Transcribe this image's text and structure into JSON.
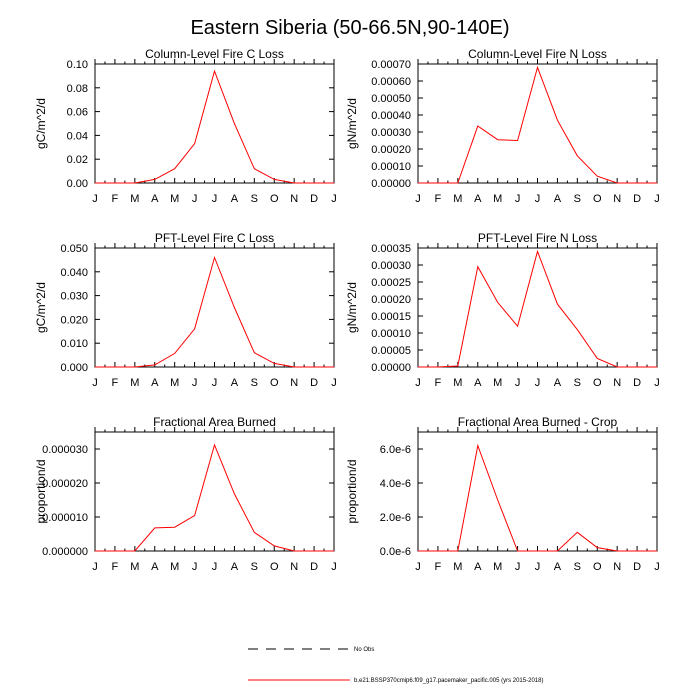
{
  "title": "Eastern Siberia (50-66.5N,90-140E)",
  "month_labels": [
    "J",
    "F",
    "M",
    "A",
    "M",
    "J",
    "J",
    "A",
    "S",
    "O",
    "N",
    "D",
    "J"
  ],
  "legend": [
    {
      "label": "No Obs",
      "color": "#000000",
      "style": "dashed"
    },
    {
      "label": "b.e21.BSSP370cmip6.f09_g17.pacemaker_pacific.005 (yrs 2015-2018)",
      "color": "#ff0000",
      "style": "solid"
    }
  ],
  "chart_data": [
    {
      "type": "line",
      "title": "Column-Level Fire C Loss",
      "ylabel": "gC/m^2/d",
      "ylim": [
        0,
        0.1
      ],
      "yticks": [
        0,
        0.02,
        0.04,
        0.06,
        0.08,
        0.1
      ],
      "yticklabels": [
        "0.00",
        "0.02",
        "0.04",
        "0.06",
        "0.08",
        "0.10"
      ],
      "series": [
        {
          "color": "#ff0000",
          "values": [
            0,
            0,
            0,
            0.003,
            0.012,
            0.033,
            0.094,
            0.05,
            0.012,
            0.003,
            0,
            0,
            0
          ]
        }
      ]
    },
    {
      "type": "line",
      "title": "Column-Level Fire N Loss",
      "ylabel": "gN/m^2/d",
      "ylim": [
        0,
        0.0007
      ],
      "yticks": [
        0,
        0.0001,
        0.0002,
        0.0003,
        0.0004,
        0.0005,
        0.0006,
        0.0007
      ],
      "yticklabels": [
        "0.00000",
        "0.00010",
        "0.00020",
        "0.00030",
        "0.00040",
        "0.00050",
        "0.00060",
        "0.00070"
      ],
      "series": [
        {
          "color": "#ff0000",
          "values": [
            0,
            0,
            0,
            0.000335,
            0.000255,
            0.00025,
            0.00068,
            0.00037,
            0.00016,
            4e-05,
            0,
            0,
            0
          ]
        }
      ]
    },
    {
      "type": "line",
      "title": "PFT-Level Fire C Loss",
      "ylabel": "gC/m^2/d",
      "ylim": [
        0,
        0.05
      ],
      "yticks": [
        0,
        0.01,
        0.02,
        0.03,
        0.04,
        0.05
      ],
      "yticklabels": [
        "0.000",
        "0.010",
        "0.020",
        "0.030",
        "0.040",
        "0.050"
      ],
      "series": [
        {
          "color": "#ff0000",
          "values": [
            0,
            0,
            0,
            0.0009,
            0.0057,
            0.016,
            0.046,
            0.025,
            0.006,
            0.0015,
            0,
            0,
            0
          ]
        }
      ]
    },
    {
      "type": "line",
      "title": "PFT-Level Fire N Loss",
      "ylabel": "gN/m^2/d",
      "ylim": [
        0,
        0.00035
      ],
      "yticks": [
        0,
        5e-05,
        0.0001,
        0.00015,
        0.0002,
        0.00025,
        0.0003,
        0.00035
      ],
      "yticklabels": [
        "0.00000",
        "0.00005",
        "0.00010",
        "0.00015",
        "0.00020",
        "0.00025",
        "0.00030",
        "0.00035"
      ],
      "series": [
        {
          "color": "#ff0000",
          "values": [
            0,
            0,
            3e-06,
            0.000295,
            0.00019,
            0.00012,
            0.00034,
            0.000185,
            0.00011,
            2.5e-05,
            0,
            0,
            0
          ]
        }
      ]
    },
    {
      "type": "line",
      "title": "Fractional Area Burned",
      "ylabel": "proportion/d",
      "ylim": [
        0,
        3.5e-05
      ],
      "yticks": [
        0,
        1e-05,
        2e-05,
        3e-05
      ],
      "yticklabels": [
        "0.000000",
        "0.000010",
        "0.000020",
        "0.000030"
      ],
      "series": [
        {
          "color": "#ff0000",
          "values": [
            0,
            0,
            0,
            6.8e-06,
            7e-06,
            1.04e-05,
            3.12e-05,
            1.68e-05,
            5.5e-06,
            1.5e-06,
            0,
            0,
            0
          ]
        }
      ]
    },
    {
      "type": "line",
      "title": "Fractional Area Burned - Crop",
      "ylabel": "proportion/d",
      "ylim": [
        0,
        7e-06
      ],
      "yticks": [
        0,
        2e-06,
        4e-06,
        6e-06
      ],
      "yticklabels": [
        "0.0e-6",
        "2.0e-6",
        "4.0e-6",
        "6.0e-6"
      ],
      "series": [
        {
          "color": "#ff0000",
          "values": [
            0,
            0,
            0,
            6.2e-06,
            3e-06,
            0,
            0,
            0,
            1.1e-06,
            2e-07,
            0,
            0,
            0
          ]
        }
      ]
    }
  ]
}
